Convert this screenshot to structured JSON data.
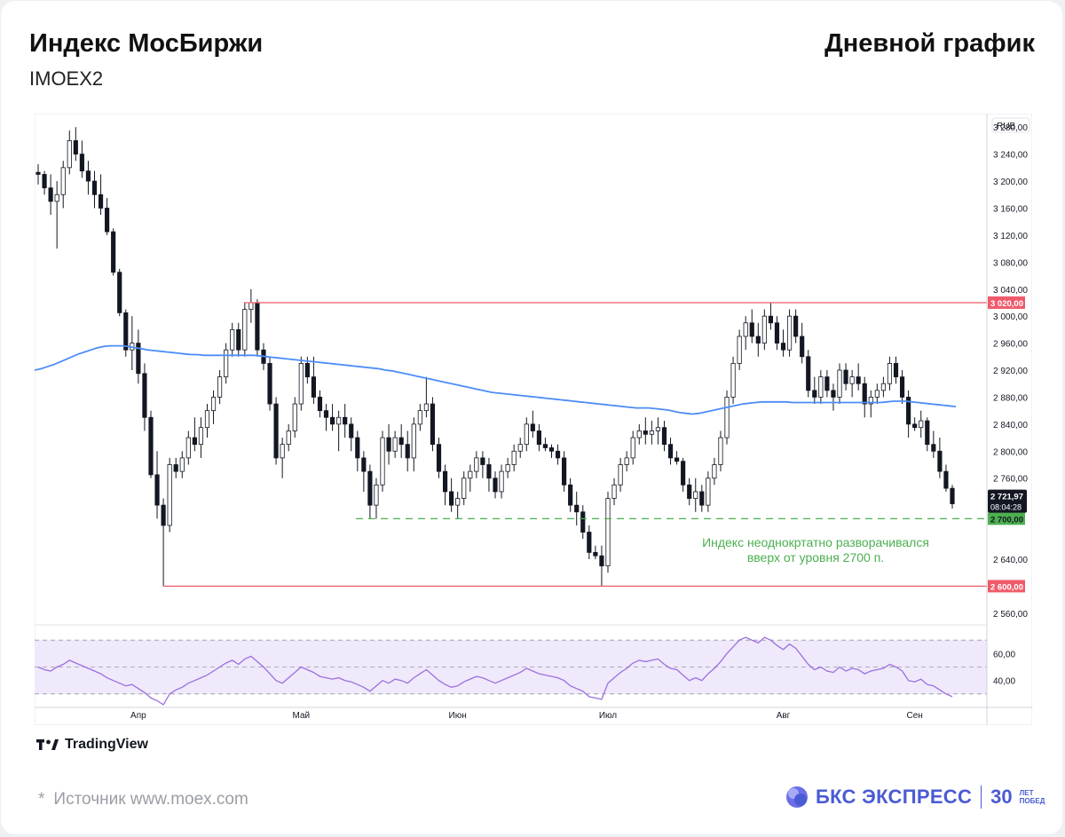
{
  "header": {
    "title": "Индекс МосБиржи",
    "subtitle": "IMOEX2",
    "right_title": "Дневной график"
  },
  "footer": {
    "source": "Источник www.moex.com",
    "star": "*",
    "tv_brand": "TradingView",
    "bks_brand": "БКС ЭКСПРЕСС",
    "anniv_number": "30",
    "anniv_line1": "ЛЕТ",
    "anniv_line2": "ПОБЕД"
  },
  "colors": {
    "up": "#ffffff",
    "down": "#131722",
    "ma": "#4c8df6",
    "level_red": "#ef5b6b",
    "level_green": "#4caf50",
    "rsi": "#9c6fe0",
    "rsi_band": "#efe9fb"
  },
  "chart_data": {
    "type": "candlestick",
    "currency_label": "RUB",
    "y_ticks": [
      "3 280,00",
      "3 240,00",
      "3 200,00",
      "3 160,00",
      "3 120,00",
      "3 080,00",
      "3 040,00",
      "3 000,00",
      "2 960,00",
      "2 920,00",
      "2 880,00",
      "2 840,00",
      "2 800,00",
      "2 760,00",
      "2 640,00",
      "2 560,00"
    ],
    "ylim": [
      2544,
      3300
    ],
    "x_ticks": [
      "Апр",
      "Май",
      "Июн",
      "Июл",
      "Авг",
      "Сен"
    ],
    "levels": [
      {
        "value": 3020,
        "label": "3 020,00",
        "color": "#ef5b6b",
        "style": "solid"
      },
      {
        "value": 2600,
        "label": "2 600,00",
        "color": "#ef5b6b",
        "style": "solid"
      },
      {
        "value": 2700,
        "label": "2 700,00",
        "color": "#4caf50",
        "style": "dashed"
      }
    ],
    "last_price": {
      "value": 2721.97,
      "label": "2 721,97",
      "countdown": "08:04:28"
    },
    "annotation": {
      "line1": "Индекс неоднокртатно разворачивался",
      "line2": "вверх от уровня 2700 п."
    },
    "rsi_ticks": [
      "60,00",
      "40,00"
    ],
    "candles": [
      [
        3213,
        3225,
        3195,
        3210
      ],
      [
        3210,
        3215,
        3180,
        3190
      ],
      [
        3190,
        3210,
        3150,
        3170
      ],
      [
        3170,
        3200,
        3100,
        3180
      ],
      [
        3180,
        3230,
        3160,
        3220
      ],
      [
        3220,
        3275,
        3210,
        3260
      ],
      [
        3260,
        3280,
        3230,
        3240
      ],
      [
        3240,
        3260,
        3205,
        3215
      ],
      [
        3215,
        3230,
        3180,
        3200
      ],
      [
        3200,
        3215,
        3160,
        3180
      ],
      [
        3180,
        3210,
        3150,
        3160
      ],
      [
        3160,
        3175,
        3120,
        3125
      ],
      [
        3125,
        3130,
        3060,
        3065
      ],
      [
        3065,
        3070,
        3000,
        3005
      ],
      [
        3005,
        3010,
        2940,
        2950
      ],
      [
        2950,
        3000,
        2920,
        2960
      ],
      [
        2960,
        2980,
        2900,
        2915
      ],
      [
        2915,
        2930,
        2830,
        2850
      ],
      [
        2850,
        2860,
        2760,
        2765
      ],
      [
        2765,
        2800,
        2700,
        2720
      ],
      [
        2720,
        2730,
        2600,
        2690
      ],
      [
        2690,
        2790,
        2680,
        2780
      ],
      [
        2780,
        2790,
        2760,
        2770
      ],
      [
        2770,
        2800,
        2760,
        2790
      ],
      [
        2790,
        2830,
        2780,
        2820
      ],
      [
        2820,
        2850,
        2800,
        2810
      ],
      [
        2810,
        2850,
        2790,
        2835
      ],
      [
        2835,
        2870,
        2820,
        2860
      ],
      [
        2860,
        2890,
        2840,
        2880
      ],
      [
        2880,
        2920,
        2870,
        2910
      ],
      [
        2910,
        2960,
        2900,
        2950
      ],
      [
        2950,
        2990,
        2940,
        2980
      ],
      [
        2980,
        2990,
        2940,
        2950
      ],
      [
        2950,
        3020,
        2940,
        3010
      ],
      [
        3010,
        3040,
        2990,
        3020
      ],
      [
        3020,
        3025,
        2940,
        2950
      ],
      [
        2950,
        2960,
        2920,
        2930
      ],
      [
        2930,
        2940,
        2860,
        2870
      ],
      [
        2870,
        2880,
        2780,
        2790
      ],
      [
        2790,
        2820,
        2760,
        2810
      ],
      [
        2810,
        2840,
        2800,
        2830
      ],
      [
        2830,
        2880,
        2820,
        2870
      ],
      [
        2870,
        2940,
        2860,
        2930
      ],
      [
        2930,
        2940,
        2900,
        2910
      ],
      [
        2910,
        2940,
        2870,
        2880
      ],
      [
        2880,
        2890,
        2850,
        2860
      ],
      [
        2860,
        2870,
        2830,
        2850
      ],
      [
        2850,
        2870,
        2830,
        2840
      ],
      [
        2840,
        2860,
        2800,
        2850
      ],
      [
        2850,
        2870,
        2820,
        2840
      ],
      [
        2840,
        2850,
        2800,
        2820
      ],
      [
        2820,
        2830,
        2770,
        2790
      ],
      [
        2790,
        2800,
        2740,
        2770
      ],
      [
        2770,
        2780,
        2700,
        2720
      ],
      [
        2720,
        2760,
        2700,
        2750
      ],
      [
        2750,
        2830,
        2740,
        2820
      ],
      [
        2820,
        2840,
        2780,
        2800
      ],
      [
        2800,
        2830,
        2790,
        2820
      ],
      [
        2820,
        2840,
        2790,
        2810
      ],
      [
        2810,
        2830,
        2770,
        2790
      ],
      [
        2790,
        2850,
        2770,
        2840
      ],
      [
        2840,
        2870,
        2830,
        2860
      ],
      [
        2860,
        2910,
        2850,
        2870
      ],
      [
        2870,
        2880,
        2800,
        2810
      ],
      [
        2810,
        2820,
        2760,
        2770
      ],
      [
        2770,
        2780,
        2720,
        2740
      ],
      [
        2740,
        2760,
        2710,
        2720
      ],
      [
        2720,
        2740,
        2700,
        2730
      ],
      [
        2730,
        2770,
        2720,
        2760
      ],
      [
        2760,
        2780,
        2740,
        2770
      ],
      [
        2770,
        2800,
        2760,
        2790
      ],
      [
        2790,
        2800,
        2760,
        2780
      ],
      [
        2780,
        2790,
        2740,
        2760
      ],
      [
        2760,
        2770,
        2730,
        2740
      ],
      [
        2740,
        2780,
        2730,
        2770
      ],
      [
        2770,
        2790,
        2760,
        2780
      ],
      [
        2780,
        2810,
        2770,
        2800
      ],
      [
        2800,
        2820,
        2790,
        2810
      ],
      [
        2810,
        2850,
        2800,
        2840
      ],
      [
        2840,
        2860,
        2820,
        2830
      ],
      [
        2830,
        2840,
        2800,
        2810
      ],
      [
        2810,
        2820,
        2800,
        2805
      ],
      [
        2805,
        2810,
        2790,
        2800
      ],
      [
        2800,
        2810,
        2780,
        2790
      ],
      [
        2790,
        2800,
        2740,
        2750
      ],
      [
        2750,
        2760,
        2710,
        2720
      ],
      [
        2720,
        2740,
        2690,
        2710
      ],
      [
        2710,
        2720,
        2670,
        2680
      ],
      [
        2680,
        2690,
        2640,
        2650
      ],
      [
        2650,
        2660,
        2640,
        2645
      ],
      [
        2645,
        2660,
        2600,
        2630
      ],
      [
        2630,
        2740,
        2620,
        2730
      ],
      [
        2730,
        2760,
        2720,
        2750
      ],
      [
        2750,
        2790,
        2740,
        2780
      ],
      [
        2780,
        2800,
        2770,
        2790
      ],
      [
        2790,
        2830,
        2780,
        2820
      ],
      [
        2820,
        2840,
        2810,
        2830
      ],
      [
        2830,
        2850,
        2810,
        2825
      ],
      [
        2825,
        2845,
        2810,
        2830
      ],
      [
        2830,
        2850,
        2810,
        2835
      ],
      [
        2835,
        2845,
        2800,
        2810
      ],
      [
        2810,
        2820,
        2780,
        2790
      ],
      [
        2790,
        2800,
        2780,
        2785
      ],
      [
        2785,
        2790,
        2740,
        2750
      ],
      [
        2750,
        2760,
        2720,
        2730
      ],
      [
        2730,
        2760,
        2710,
        2740
      ],
      [
        2740,
        2750,
        2710,
        2720
      ],
      [
        2720,
        2770,
        2710,
        2760
      ],
      [
        2760,
        2790,
        2750,
        2780
      ],
      [
        2780,
        2830,
        2770,
        2820
      ],
      [
        2820,
        2890,
        2810,
        2880
      ],
      [
        2880,
        2940,
        2870,
        2930
      ],
      [
        2930,
        2980,
        2920,
        2970
      ],
      [
        2970,
        3000,
        2950,
        2990
      ],
      [
        2990,
        3010,
        2960,
        2970
      ],
      [
        2970,
        2990,
        2940,
        2960
      ],
      [
        2960,
        3010,
        2950,
        3000
      ],
      [
        3000,
        3020,
        2980,
        2990
      ],
      [
        2990,
        3000,
        2950,
        2960
      ],
      [
        2960,
        2980,
        2940,
        2950
      ],
      [
        2950,
        3010,
        2940,
        3000
      ],
      [
        3000,
        3010,
        2960,
        2970
      ],
      [
        2970,
        2990,
        2930,
        2940
      ],
      [
        2940,
        2950,
        2880,
        2890
      ],
      [
        2890,
        2910,
        2870,
        2880
      ],
      [
        2880,
        2920,
        2870,
        2910
      ],
      [
        2910,
        2920,
        2880,
        2890
      ],
      [
        2890,
        2900,
        2860,
        2880
      ],
      [
        2880,
        2930,
        2870,
        2920
      ],
      [
        2920,
        2930,
        2890,
        2900
      ],
      [
        2900,
        2920,
        2880,
        2910
      ],
      [
        2910,
        2930,
        2890,
        2900
      ],
      [
        2900,
        2910,
        2850,
        2870
      ],
      [
        2870,
        2890,
        2850,
        2880
      ],
      [
        2880,
        2900,
        2870,
        2890
      ],
      [
        2890,
        2910,
        2880,
        2900
      ],
      [
        2900,
        2940,
        2890,
        2930
      ],
      [
        2930,
        2940,
        2900,
        2910
      ],
      [
        2910,
        2920,
        2870,
        2880
      ],
      [
        2880,
        2890,
        2820,
        2840
      ],
      [
        2840,
        2850,
        2830,
        2835
      ],
      [
        2835,
        2860,
        2820,
        2845
      ],
      [
        2845,
        2850,
        2800,
        2810
      ],
      [
        2810,
        2830,
        2790,
        2800
      ],
      [
        2800,
        2820,
        2760,
        2770
      ],
      [
        2770,
        2780,
        2740,
        2745
      ],
      [
        2745,
        2750,
        2715,
        2722
      ]
    ],
    "ma": [
      2920,
      2922,
      2925,
      2928,
      2932,
      2936,
      2940,
      2944,
      2947,
      2950,
      2953,
      2955,
      2956,
      2956,
      2956,
      2955,
      2953,
      2952,
      2950,
      2949,
      2948,
      2947,
      2946,
      2945,
      2944,
      2943,
      2943,
      2942,
      2942,
      2942,
      2942,
      2942,
      2942,
      2942,
      2942,
      2942,
      2941,
      2940,
      2939,
      2938,
      2937,
      2936,
      2935,
      2934,
      2933,
      2932,
      2931,
      2930,
      2929,
      2928,
      2927,
      2926,
      2925,
      2924,
      2923,
      2922,
      2920,
      2919,
      2917,
      2915,
      2913,
      2911,
      2909,
      2907,
      2905,
      2903,
      2901,
      2899,
      2897,
      2895,
      2893,
      2891,
      2889,
      2887,
      2886,
      2885,
      2884,
      2883,
      2882,
      2881,
      2880,
      2879,
      2878,
      2877,
      2876,
      2875,
      2874,
      2873,
      2872,
      2871,
      2870,
      2869,
      2868,
      2867,
      2866,
      2865,
      2864,
      2864,
      2864,
      2863,
      2862,
      2861,
      2859,
      2857,
      2856,
      2855,
      2856,
      2858,
      2860,
      2862,
      2864,
      2866,
      2868,
      2870,
      2871,
      2872,
      2873,
      2873,
      2873,
      2873,
      2873,
      2872,
      2872,
      2872,
      2872,
      2872,
      2872,
      2872,
      2872,
      2872,
      2872,
      2872,
      2872,
      2872,
      2872,
      2872,
      2873,
      2874,
      2874,
      2874,
      2873,
      2872,
      2871,
      2870,
      2869,
      2868,
      2867,
      2866
    ],
    "rsi": [
      50,
      48,
      47,
      50,
      52,
      55,
      53,
      51,
      49,
      47,
      45,
      42,
      40,
      38,
      36,
      37,
      34,
      31,
      27,
      25,
      22,
      30,
      33,
      35,
      38,
      40,
      42,
      44,
      47,
      50,
      53,
      55,
      52,
      56,
      58,
      54,
      50,
      45,
      40,
      38,
      42,
      46,
      50,
      48,
      46,
      43,
      42,
      41,
      42,
      40,
      39,
      37,
      35,
      32,
      36,
      40,
      38,
      41,
      40,
      38,
      42,
      45,
      48,
      44,
      40,
      37,
      35,
      36,
      39,
      41,
      43,
      42,
      40,
      38,
      40,
      42,
      44,
      46,
      49,
      47,
      45,
      44,
      43,
      42,
      40,
      36,
      34,
      32,
      28,
      27,
      26,
      38,
      42,
      46,
      49,
      53,
      55,
      54,
      55,
      56,
      52,
      49,
      48,
      44,
      40,
      42,
      40,
      45,
      49,
      54,
      60,
      65,
      70,
      72,
      70,
      68,
      72,
      70,
      66,
      63,
      67,
      64,
      58,
      52,
      48,
      50,
      47,
      46,
      50,
      47,
      49,
      48,
      45,
      47,
      48,
      49,
      52,
      50,
      47,
      40,
      39,
      41,
      37,
      36,
      33,
      30,
      28
    ]
  }
}
